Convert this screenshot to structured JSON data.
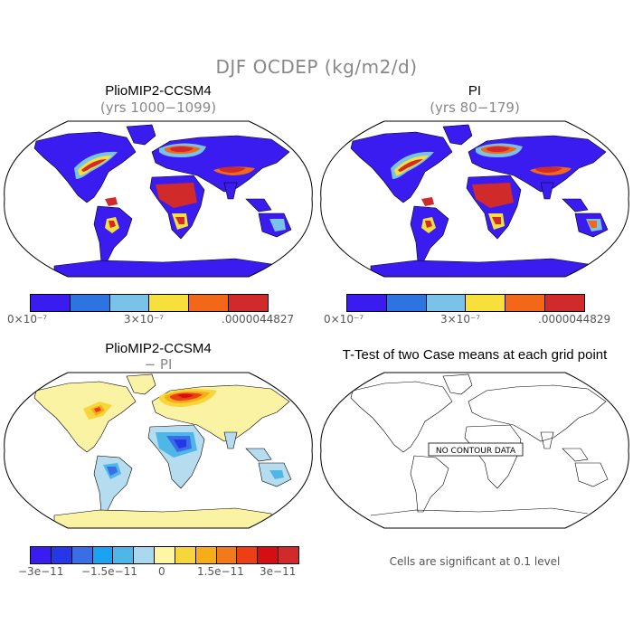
{
  "main_title": "DJF OCDEP (kg/m2/d)",
  "panels": {
    "p1": {
      "title": "PlioMIP2-CCSM4",
      "subtitle": "(yrs 1000−1099)"
    },
    "p2": {
      "title": "PI",
      "subtitle": "(yrs 80−179)"
    },
    "p3": {
      "title": "PlioMIP2-CCSM4",
      "subtitle": "− PI"
    },
    "p4": {
      "title": "T-Test of two Case means at each grid point",
      "nodata": "NO CONTOUR DATA",
      "footnote": "Cells are significant at 0.1 level"
    }
  },
  "colorbars": {
    "cb1": {
      "labels": [
        "0×10⁻⁷",
        "3×10⁻⁷",
        ".0000044827"
      ],
      "colors": [
        "#3a1cf0",
        "#2e74e0",
        "#79c3ea",
        "#f7df3c",
        "#f26818",
        "#d02a2a"
      ]
    },
    "cb2": {
      "labels": [
        "0×10⁻⁷",
        "3×10⁻⁷",
        ".0000044829"
      ],
      "colors": [
        "#3a1cf0",
        "#2e74e0",
        "#79c3ea",
        "#f7df3c",
        "#f26818",
        "#d02a2a"
      ]
    },
    "cb3": {
      "labels": [
        "−3e−11",
        "−1.5e−11",
        "0",
        "1.5e−11",
        "3e−11"
      ],
      "colors": [
        "#3a1cf0",
        "#2537e6",
        "#3a6ee6",
        "#1aa3f0",
        "#4fb7e8",
        "#a9d8ef",
        "#fdf6a4",
        "#f7d63c",
        "#f6ad18",
        "#f27a1a",
        "#ee3e16",
        "#d40e12",
        "#d02a2a"
      ]
    }
  },
  "colors": {
    "ocean": "#ffffff",
    "coast": "#000000",
    "diff_north": "#fbf3a4",
    "diff_south": "#b6dcef"
  }
}
